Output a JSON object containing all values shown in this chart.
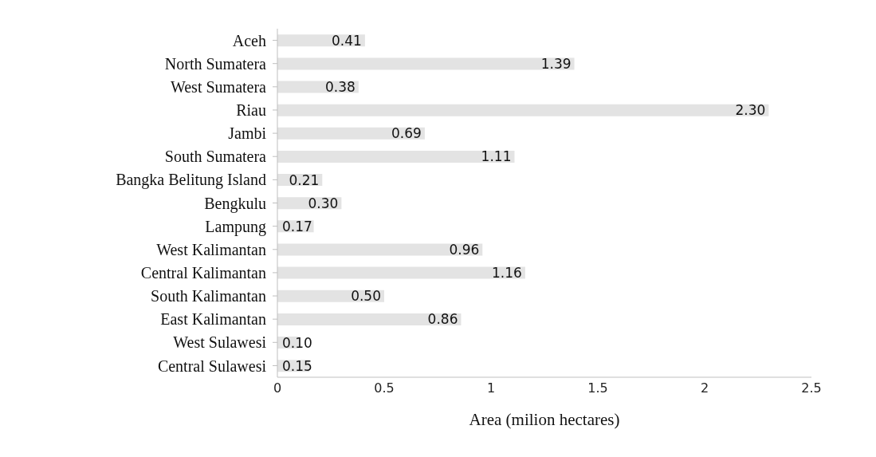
{
  "chart_data": {
    "type": "bar",
    "orientation": "horizontal",
    "xlabel": "Area (milion hectares)",
    "categories": [
      "Aceh",
      "North Sumatera",
      "West Sumatera",
      "Riau",
      "Jambi",
      "South Sumatera",
      "Bangka Belitung Island",
      "Bengkulu",
      "Lampung",
      "West Kalimantan",
      "Central Kalimantan",
      "South Kalimantan",
      "East Kalimantan",
      "West Sulawesi",
      "Central Sulawesi"
    ],
    "values": [
      0.41,
      1.39,
      0.38,
      2.3,
      0.69,
      1.11,
      0.21,
      0.3,
      0.17,
      0.96,
      1.16,
      0.5,
      0.86,
      0.1,
      0.15
    ],
    "value_labels": [
      "0.41",
      "1.39",
      "0.38",
      "2.30",
      "0.69",
      "1.11",
      "0.21",
      "0.30",
      "0.17",
      "0.96",
      "1.16",
      "0.50",
      "0.86",
      "0.10",
      "0.15"
    ],
    "color": "#e3e3e3",
    "xlim": [
      0,
      2.5
    ],
    "xticks": [
      0,
      0.5,
      1,
      1.5,
      2,
      2.5
    ],
    "grid": false,
    "legend": false
  }
}
